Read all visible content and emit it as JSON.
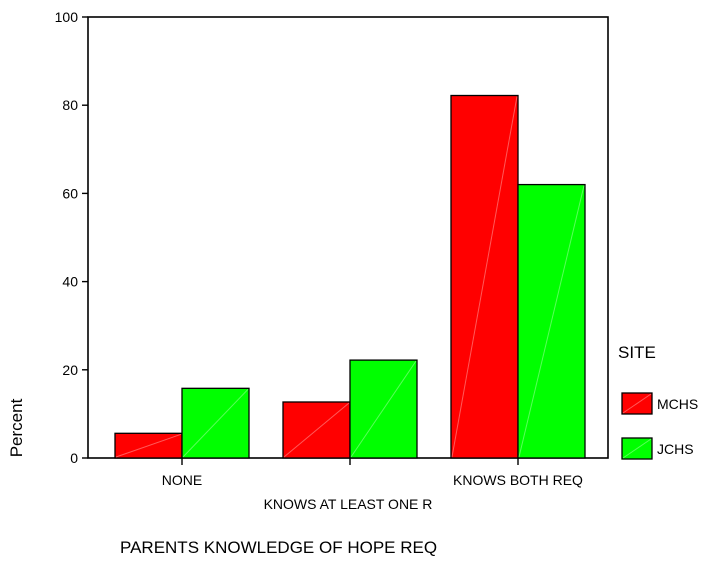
{
  "chart_data": {
    "type": "bar",
    "title": "",
    "xlabel": "KNOWS AT LEAST ONE R",
    "ylabel": "Percent",
    "footer_title": "PARENTS KNOWLEDGE OF HOPE REQ",
    "categories": [
      "NONE",
      "",
      "KNOWS BOTH REQ"
    ],
    "ylim": [
      0,
      100
    ],
    "yticks": [
      0,
      20,
      40,
      60,
      80,
      100
    ],
    "grid": false,
    "legend": {
      "title": "SITE",
      "position": "right"
    },
    "series": [
      {
        "name": "MCHS",
        "color": "#FF0000",
        "values": [
          5.6,
          12.7,
          82.2
        ]
      },
      {
        "name": "JCHS",
        "color": "#00FF00",
        "values": [
          15.8,
          22.2,
          62.0
        ]
      }
    ]
  }
}
